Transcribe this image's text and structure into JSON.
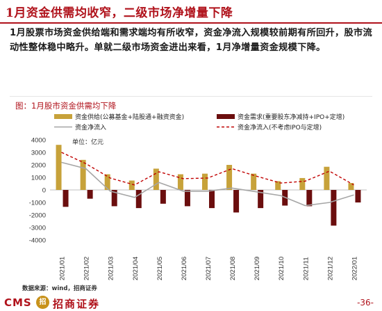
{
  "header": {
    "title": "1月资金供需均收窄，二级市场净增量下降"
  },
  "body": {
    "text": "1月股票市场资金供给端和需求端均有所收窄，资金净流入规模较前期有所回升，股市流动性整体稳中略升。单就二级市场资金进出来看，1月净增量资金规模下降。"
  },
  "chart_data": {
    "type": "bar",
    "title": "图：1月股市资金供需均下降",
    "unit_label": "单位：亿元",
    "categories": [
      "2021/01",
      "2021/02",
      "2021/03",
      "2021/04",
      "2021/05",
      "2021/06",
      "2021/07",
      "2021/08",
      "2021/09",
      "2021/10",
      "2021/11",
      "2021/12",
      "2022/01"
    ],
    "ylim": [
      -4000,
      4000
    ],
    "yticks": [
      4000,
      3000,
      2000,
      1000,
      0,
      -1000,
      -2000,
      -3000,
      -4000
    ],
    "series": [
      {
        "name": "资金供给(公募基金+陆股通+融资资金)",
        "kind": "bar",
        "color": "#c7a23a",
        "values": [
          3600,
          2400,
          1250,
          750,
          1700,
          1250,
          1300,
          2000,
          1300,
          700,
          950,
          1850,
          550
        ]
      },
      {
        "name": "资金需求(重要股东净减持+IPO+定增)",
        "kind": "bar",
        "color": "#6b0e0e",
        "values": [
          -1350,
          -700,
          -1300,
          -1450,
          -1100,
          -1300,
          -1450,
          -1800,
          -1450,
          -1250,
          -1300,
          -2850,
          -1000
        ]
      },
      {
        "name": "资金净流入",
        "kind": "line",
        "color": "#a6a6a6",
        "values": [
          2200,
          1700,
          -100,
          -600,
          600,
          -100,
          -100,
          150,
          -150,
          -450,
          -1250,
          -1000,
          -400
        ]
      },
      {
        "name": "资金净流入(不考虑IPO与定增)",
        "kind": "dashed",
        "color": "#c00000",
        "values": [
          3000,
          2100,
          950,
          400,
          1450,
          900,
          950,
          1700,
          1100,
          550,
          700,
          1500,
          400
        ]
      }
    ]
  },
  "source": "数据来源：wind，招商证券",
  "footer": {
    "cms": "CMS",
    "logo_mark": "招",
    "brand": "招商证券",
    "page": "-36-"
  }
}
